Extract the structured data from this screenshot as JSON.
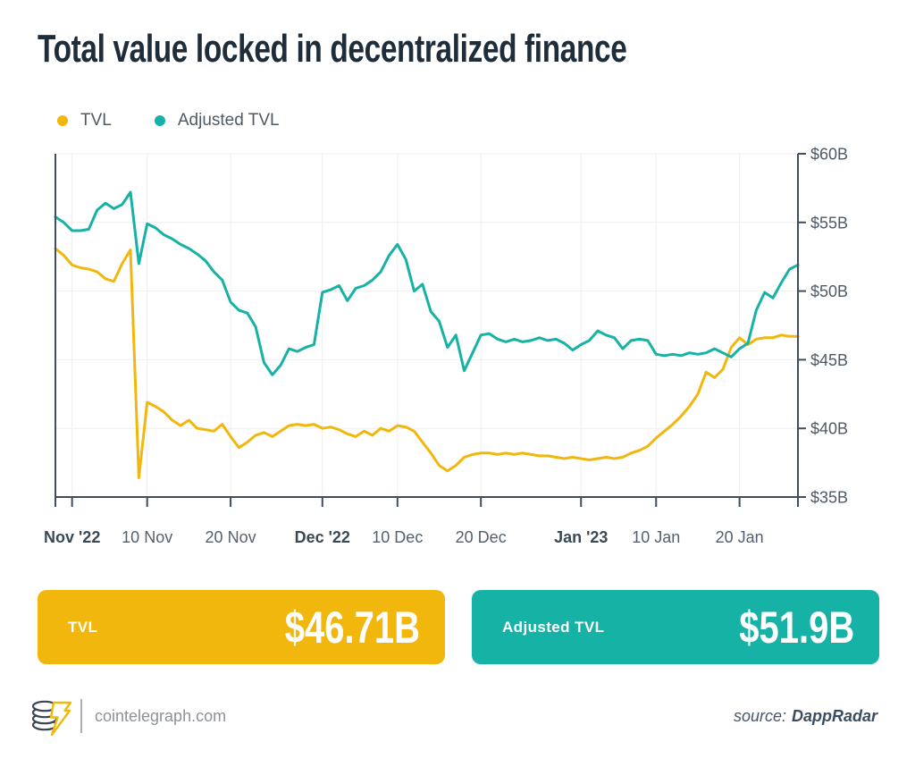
{
  "title": "Total value locked in decentralized finance",
  "legend": [
    {
      "label": "TVL",
      "color": "#F2B70D"
    },
    {
      "label": "Adjusted TVL",
      "color": "#15B2A5"
    }
  ],
  "chart_data": {
    "type": "line",
    "title": "Total value locked in decentralized finance",
    "xlabel": "",
    "ylabel": "",
    "ylim": [
      35,
      60
    ],
    "grid": true,
    "legend_position": "top-left",
    "y_ticks": [
      {
        "label": "$35B",
        "value": 35
      },
      {
        "label": "$40B",
        "value": 40
      },
      {
        "label": "$45B",
        "value": 45
      },
      {
        "label": "$50B",
        "value": 50
      },
      {
        "label": "$55B",
        "value": 55
      },
      {
        "label": "$60B",
        "value": 60
      }
    ],
    "x_ticks": [
      {
        "label": "Nov '22",
        "index": 2,
        "bold": true
      },
      {
        "label": "10 Nov",
        "index": 11,
        "bold": false
      },
      {
        "label": "20 Nov",
        "index": 21,
        "bold": false
      },
      {
        "label": "Dec '22",
        "index": 32,
        "bold": true
      },
      {
        "label": "10 Dec",
        "index": 41,
        "bold": false
      },
      {
        "label": "20 Dec",
        "index": 51,
        "bold": false
      },
      {
        "label": "Jan '23",
        "index": 63,
        "bold": true
      },
      {
        "label": "10 Jan",
        "index": 72,
        "bold": false
      },
      {
        "label": "20 Jan",
        "index": 82,
        "bold": false
      }
    ],
    "series": [
      {
        "name": "TVL",
        "color": "#F2B70D",
        "values": [
          53.1,
          52.6,
          51.9,
          51.7,
          51.6,
          51.4,
          50.9,
          50.7,
          52.0,
          53.0,
          36.4,
          41.9,
          41.6,
          41.2,
          40.6,
          40.2,
          40.6,
          40.0,
          39.9,
          39.8,
          40.3,
          39.4,
          38.6,
          39.0,
          39.5,
          39.7,
          39.4,
          39.8,
          40.2,
          40.3,
          40.2,
          40.3,
          40.0,
          40.1,
          39.9,
          39.6,
          39.4,
          39.8,
          39.5,
          40.0,
          39.8,
          40.2,
          40.1,
          39.8,
          39.0,
          38.2,
          37.3,
          36.9,
          37.3,
          37.9,
          38.1,
          38.2,
          38.2,
          38.1,
          38.2,
          38.1,
          38.2,
          38.1,
          38.0,
          38.0,
          37.9,
          37.8,
          37.9,
          37.8,
          37.7,
          37.8,
          37.9,
          37.8,
          37.9,
          38.2,
          38.4,
          38.7,
          39.3,
          39.8,
          40.3,
          40.9,
          41.6,
          42.5,
          44.1,
          43.7,
          44.3,
          45.9,
          46.6,
          46.1,
          46.5,
          46.6,
          46.6,
          46.8,
          46.7,
          46.7
        ]
      },
      {
        "name": "Adjusted TVL",
        "color": "#15B2A5",
        "values": [
          55.4,
          55.0,
          54.4,
          54.4,
          54.5,
          55.9,
          56.4,
          56.0,
          56.3,
          57.2,
          52.0,
          54.9,
          54.6,
          54.1,
          53.8,
          53.4,
          53.1,
          52.7,
          52.2,
          51.4,
          50.8,
          49.2,
          48.6,
          48.4,
          47.4,
          44.8,
          43.9,
          44.6,
          45.8,
          45.6,
          45.9,
          46.1,
          49.9,
          50.1,
          50.4,
          49.3,
          50.2,
          50.4,
          50.8,
          51.4,
          52.6,
          53.4,
          52.3,
          50.0,
          50.5,
          48.5,
          47.8,
          45.9,
          46.8,
          44.2,
          45.5,
          46.8,
          46.9,
          46.5,
          46.3,
          46.5,
          46.3,
          46.4,
          46.6,
          46.4,
          46.5,
          46.2,
          45.7,
          46.1,
          46.4,
          47.1,
          46.8,
          46.6,
          45.8,
          46.4,
          46.5,
          46.4,
          45.4,
          45.3,
          45.4,
          45.3,
          45.5,
          45.4,
          45.5,
          45.8,
          45.5,
          45.2,
          45.8,
          46.2,
          48.6,
          49.9,
          49.5,
          50.6,
          51.6,
          51.9
        ]
      }
    ]
  },
  "stat_cards": [
    {
      "label": "TVL",
      "value": "$46.71B",
      "color": "#F2B70D"
    },
    {
      "label": "Adjusted TVL",
      "value": "$51.9B",
      "color": "#15B2A5"
    }
  ],
  "footer": {
    "site": "cointelegraph.com",
    "source_prefix": "source:",
    "source_name": "DappRadar"
  },
  "colors": {
    "background": "#FFFFFF",
    "title_text": "#1F2C39",
    "axis_spine": "#3E4E5C",
    "gridline": "#EDEEF0",
    "tick_label": "#55606C",
    "card_text": "#FFFFFF"
  }
}
